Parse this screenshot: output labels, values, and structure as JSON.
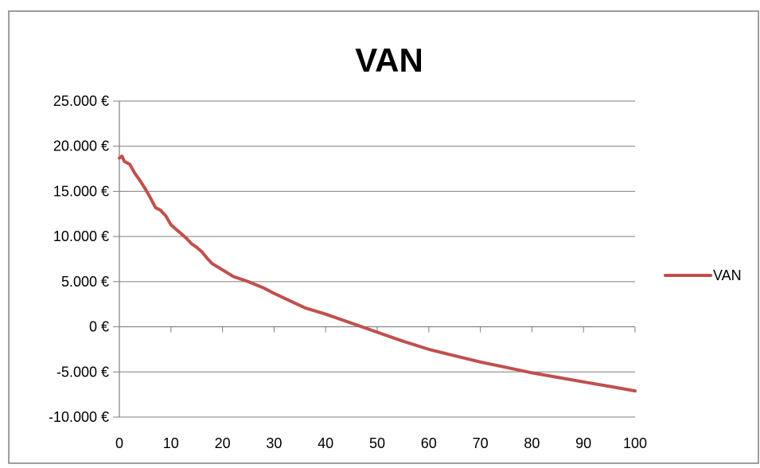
{
  "chart_data": {
    "type": "line",
    "title": "VAN",
    "xlabel": "",
    "ylabel": "",
    "xlim": [
      0,
      100
    ],
    "ylim": [
      -10000,
      25000
    ],
    "x_ticks": [
      0,
      10,
      20,
      30,
      40,
      50,
      60,
      70,
      80,
      90,
      100
    ],
    "x_tick_labels": [
      "0",
      "10",
      "20",
      "30",
      "40",
      "50",
      "60",
      "70",
      "80",
      "90",
      "100"
    ],
    "y_ticks": [
      -10000,
      -5000,
      0,
      5000,
      10000,
      15000,
      20000,
      25000
    ],
    "y_tick_labels": [
      "-10.000 €",
      "-5.000 €",
      "0 €",
      "5.000 €",
      "10.000 €",
      "15.000 €",
      "20.000 €",
      "25.000 €"
    ],
    "grid": true,
    "legend_position": "right",
    "series": [
      {
        "name": "VAN",
        "color": "#c0504d",
        "x": [
          0,
          0.5,
          1,
          2,
          3,
          4,
          5,
          6,
          7,
          8,
          9,
          10,
          11,
          12,
          13,
          14,
          15,
          16,
          17,
          18,
          20,
          22,
          25,
          28,
          30,
          33,
          36,
          40,
          45,
          50,
          55,
          60,
          65,
          70,
          75,
          80,
          85,
          90,
          95,
          100
        ],
        "values": [
          18700,
          18900,
          18300,
          18000,
          17000,
          16200,
          15300,
          14300,
          13200,
          12900,
          12300,
          11300,
          10800,
          10300,
          9800,
          9200,
          8800,
          8300,
          7600,
          7000,
          6300,
          5600,
          5000,
          4300,
          3700,
          2900,
          2100,
          1400,
          400,
          -600,
          -1600,
          -2500,
          -3200,
          -3900,
          -4500,
          -5100,
          -5600,
          -6100,
          -6600,
          -7100
        ]
      }
    ]
  }
}
